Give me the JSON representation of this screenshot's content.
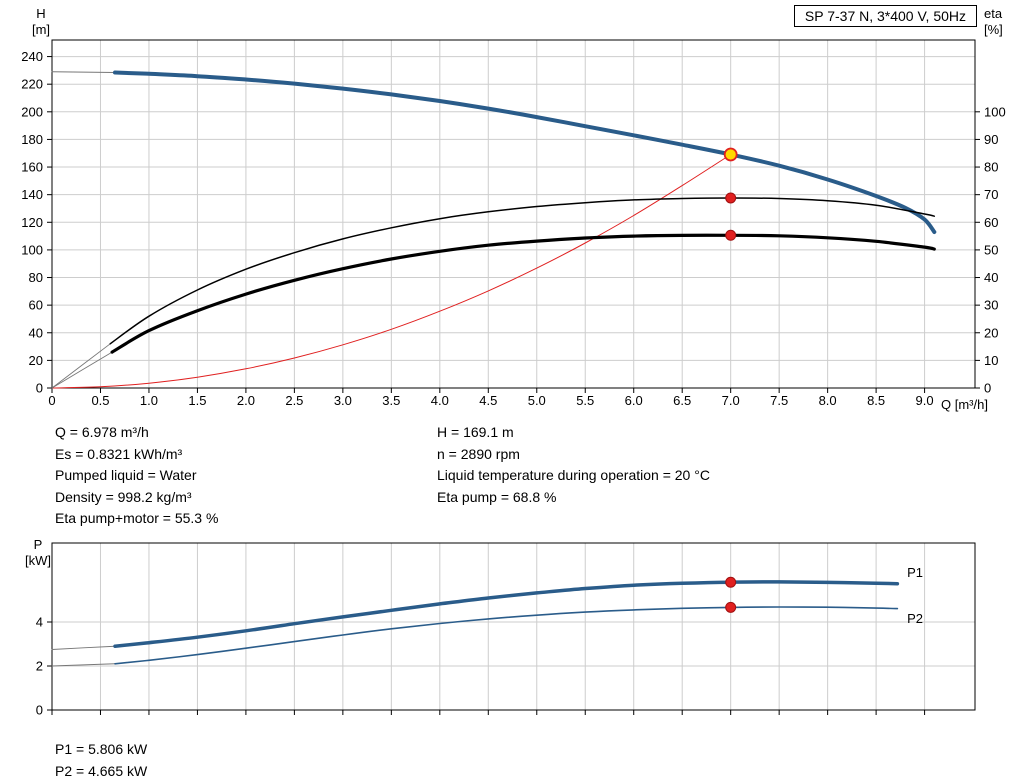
{
  "axis_labels": {
    "h_top": "H",
    "h_unit": "[m]",
    "eta_top": "eta",
    "eta_unit": "[%]",
    "q_label": "Q [m³/h]",
    "p_top": "P",
    "p_unit": "[kW]"
  },
  "info": {
    "left": [
      "Q = 6.978 m³/h",
      "Es = 0.8321 kWh/m³",
      "Pumped liquid = Water",
      "Density = 998.2 kg/m³",
      "Eta pump+motor = 55.3 %"
    ],
    "right": [
      "H = 169.1 m",
      "n = 2890 rpm",
      "Liquid temperature during operation = 20 °C",
      "Eta pump = 68.8 %"
    ]
  },
  "power_info": {
    "p1": "P1 = 5.806 kW",
    "p2": "P2 = 4.665 kW"
  },
  "colors": {
    "curve_blue": "#2a5c8a",
    "curve_black": "#000000",
    "curve_red": "#e02020",
    "duty_yellow": "#ffd800",
    "grid": "#cdcdcd",
    "lead": "#777777"
  },
  "chart_data": [
    {
      "type": "line",
      "title": "SP 7-37 N, 3*400 V, 50Hz",
      "xlabel": "Q [m³/h]",
      "ylabel_left": "H [m]",
      "ylabel_right": "eta [%]",
      "xlim": [
        0,
        9.52
      ],
      "ylim_left": [
        0,
        252
      ],
      "right_to_left_factor": 2,
      "grid": true,
      "x_ticks": [
        0,
        0.5,
        1,
        1.5,
        2,
        2.5,
        3,
        3.5,
        4,
        4.5,
        5,
        5.5,
        6,
        6.5,
        7,
        7.5,
        8,
        8.5,
        9
      ],
      "x_tick_labels": [
        "0",
        "0.5",
        "1.0",
        "1.5",
        "2.0",
        "2.5",
        "3.0",
        "3.5",
        "4.0",
        "4.5",
        "5.0",
        "5.5",
        "6.0",
        "6.5",
        "7.0",
        "7.5",
        "8.0",
        "8.5",
        "9.0"
      ],
      "y_ticks_left": [
        0,
        20,
        40,
        60,
        80,
        100,
        120,
        140,
        160,
        180,
        200,
        220,
        240
      ],
      "y_ticks_right": [
        0,
        10,
        20,
        30,
        40,
        50,
        60,
        70,
        80,
        90,
        100
      ],
      "series": [
        {
          "name": "head-curve-lead",
          "axis": "left",
          "color": "#777777",
          "width": 1,
          "points": [
            [
              0,
              229
            ],
            [
              0.65,
              228.5
            ]
          ]
        },
        {
          "name": "head-curve",
          "axis": "left",
          "color": "#2a5c8a",
          "width": 4,
          "points": [
            [
              0.65,
              228.5
            ],
            [
              1,
              227.5
            ],
            [
              1.5,
              225.8
            ],
            [
              2,
              223.4
            ],
            [
              2.5,
              220.4
            ],
            [
              3,
              216.8
            ],
            [
              3.5,
              212.6
            ],
            [
              4,
              207.8
            ],
            [
              4.5,
              202.3
            ],
            [
              5,
              196.2
            ],
            [
              5.5,
              189.6
            ],
            [
              6,
              183
            ],
            [
              6.5,
              176.2
            ],
            [
              7,
              169.1
            ],
            [
              7.5,
              161
            ],
            [
              8,
              151
            ],
            [
              8.5,
              139
            ],
            [
              8.8,
              130.5
            ],
            [
              9,
              122
            ],
            [
              9.1,
              113
            ]
          ]
        },
        {
          "name": "system-curve",
          "axis": "left",
          "color": "#e02020",
          "width": 1,
          "points": [
            [
              0,
              0
            ],
            [
              0.5,
              0.9
            ],
            [
              1,
              3.5
            ],
            [
              1.5,
              7.8
            ],
            [
              2,
              13.9
            ],
            [
              2.5,
              21.7
            ],
            [
              3,
              31.3
            ],
            [
              3.5,
              42.5
            ],
            [
              4,
              55.6
            ],
            [
              4.5,
              70.3
            ],
            [
              5,
              86.8
            ],
            [
              5.5,
              105
            ],
            [
              6,
              124.9
            ],
            [
              6.5,
              146.6
            ],
            [
              7,
              169.1
            ]
          ]
        },
        {
          "name": "eta-pump-lead",
          "axis": "right",
          "color": "#777777",
          "width": 0.9,
          "points": [
            [
              0,
              0
            ],
            [
              0.6,
              16
            ]
          ]
        },
        {
          "name": "eta-pump-curve",
          "axis": "right",
          "color": "#000000",
          "width": 1.5,
          "points": [
            [
              0.6,
              16
            ],
            [
              1,
              26
            ],
            [
              1.5,
              35.5
            ],
            [
              2,
              43
            ],
            [
              2.5,
              49
            ],
            [
              3,
              54
            ],
            [
              3.5,
              58
            ],
            [
              4,
              61.3
            ],
            [
              4.5,
              63.8
            ],
            [
              5,
              65.7
            ],
            [
              5.5,
              67.1
            ],
            [
              6,
              68.1
            ],
            [
              6.5,
              68.6
            ],
            [
              7,
              68.8
            ],
            [
              7.5,
              68.6
            ],
            [
              8,
              67.8
            ],
            [
              8.5,
              66.2
            ],
            [
              9,
              63
            ],
            [
              9.1,
              62.2
            ]
          ]
        },
        {
          "name": "eta-pump-motor-lead",
          "axis": "right",
          "color": "#777777",
          "width": 0.9,
          "points": [
            [
              0,
              0
            ],
            [
              0.62,
              13
            ]
          ]
        },
        {
          "name": "eta-pump-motor-curve",
          "axis": "right",
          "color": "#000000",
          "width": 3.2,
          "points": [
            [
              0.62,
              13
            ],
            [
              1,
              20.8
            ],
            [
              1.5,
              28
            ],
            [
              2,
              34
            ],
            [
              2.5,
              39
            ],
            [
              3,
              43.2
            ],
            [
              3.5,
              46.7
            ],
            [
              4,
              49.5
            ],
            [
              4.5,
              51.7
            ],
            [
              5,
              53.2
            ],
            [
              5.5,
              54.3
            ],
            [
              6,
              55
            ],
            [
              6.5,
              55.25
            ],
            [
              7,
              55.3
            ],
            [
              7.5,
              55.1
            ],
            [
              8,
              54.4
            ],
            [
              8.5,
              53.1
            ],
            [
              9,
              51
            ],
            [
              9.1,
              50.3
            ]
          ]
        }
      ],
      "markers": [
        {
          "name": "duty-point",
          "x": 7,
          "y": 169.1,
          "axis": "left",
          "r": 6,
          "fill": "#ffd800",
          "stroke": "#e02020",
          "stroke_width": 1.8
        },
        {
          "name": "eta-pump-point",
          "x": 7,
          "y": 68.8,
          "axis": "right",
          "r": 5,
          "fill": "#e02020",
          "stroke": "#a01010",
          "stroke_width": 1
        },
        {
          "name": "eta-pump-motor-point",
          "x": 7,
          "y": 55.3,
          "axis": "right",
          "r": 5,
          "fill": "#e02020",
          "stroke": "#a01010",
          "stroke_width": 1
        }
      ]
    },
    {
      "type": "line",
      "title": "",
      "xlabel": "",
      "ylabel_left": "P [kW]",
      "xlim": [
        0,
        9.52
      ],
      "ylim_left": [
        0,
        7.59
      ],
      "grid": true,
      "x_ticks": [
        0,
        0.5,
        1,
        1.5,
        2,
        2.5,
        3,
        3.5,
        4,
        4.5,
        5,
        5.5,
        6,
        6.5,
        7,
        7.5,
        8,
        8.5,
        9
      ],
      "y_ticks_left": [
        0,
        2,
        4
      ],
      "series": [
        {
          "name": "p1-curve-lead",
          "axis": "left",
          "color": "#777777",
          "width": 1,
          "points": [
            [
              0,
              2.75
            ],
            [
              0.65,
              2.9
            ]
          ]
        },
        {
          "name": "p1-curve",
          "axis": "left",
          "color": "#2a5c8a",
          "width": 3.5,
          "label": "P1",
          "label_pos": [
            8.82,
            6.05
          ],
          "points": [
            [
              0.65,
              2.9
            ],
            [
              1,
              3.06
            ],
            [
              1.5,
              3.31
            ],
            [
              2,
              3.6
            ],
            [
              2.5,
              3.92
            ],
            [
              3,
              4.23
            ],
            [
              3.5,
              4.53
            ],
            [
              4,
              4.82
            ],
            [
              4.5,
              5.09
            ],
            [
              5,
              5.32
            ],
            [
              5.5,
              5.52
            ],
            [
              6,
              5.67
            ],
            [
              6.5,
              5.76
            ],
            [
              7,
              5.81
            ],
            [
              7.5,
              5.82
            ],
            [
              8,
              5.8
            ],
            [
              8.5,
              5.76
            ],
            [
              8.72,
              5.74
            ]
          ]
        },
        {
          "name": "p2-curve-lead",
          "axis": "left",
          "color": "#777777",
          "width": 1,
          "points": [
            [
              0,
              2.0
            ],
            [
              0.65,
              2.1
            ]
          ]
        },
        {
          "name": "p2-curve",
          "axis": "left",
          "color": "#2a5c8a",
          "width": 1.6,
          "label": "P2",
          "label_pos": [
            8.82,
            3.95
          ],
          "points": [
            [
              0.65,
              2.1
            ],
            [
              1,
              2.26
            ],
            [
              1.5,
              2.52
            ],
            [
              2,
              2.81
            ],
            [
              2.5,
              3.11
            ],
            [
              3,
              3.41
            ],
            [
              3.5,
              3.69
            ],
            [
              4,
              3.93
            ],
            [
              4.5,
              4.14
            ],
            [
              5,
              4.31
            ],
            [
              5.5,
              4.45
            ],
            [
              6,
              4.55
            ],
            [
              6.5,
              4.62
            ],
            [
              7,
              4.665
            ],
            [
              7.5,
              4.68
            ],
            [
              8,
              4.67
            ],
            [
              8.5,
              4.63
            ],
            [
              8.72,
              4.61
            ]
          ]
        }
      ],
      "markers": [
        {
          "name": "p1-point",
          "x": 7,
          "y": 5.806,
          "axis": "left",
          "r": 5,
          "fill": "#e02020",
          "stroke": "#a01010",
          "stroke_width": 1
        },
        {
          "name": "p2-point",
          "x": 7,
          "y": 4.665,
          "axis": "left",
          "r": 5,
          "fill": "#e02020",
          "stroke": "#a01010",
          "stroke_width": 1
        }
      ]
    }
  ]
}
